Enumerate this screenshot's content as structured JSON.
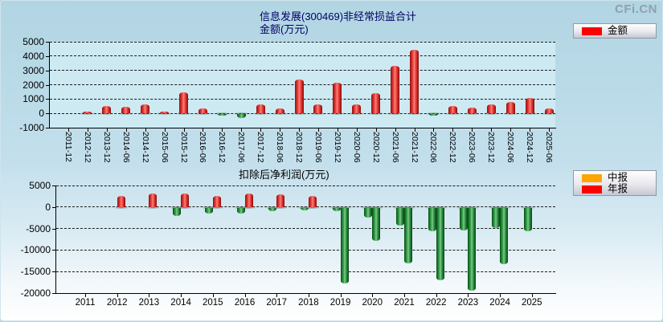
{
  "logo_text": "CFi.CN",
  "chart_data": [
    {
      "type": "bar",
      "title": "信息发展(300469)非经常损益合计",
      "subtitle": "金额(万元)",
      "ylabel": "金额(万元)",
      "ylim": [
        -1000,
        5000
      ],
      "yticks": [
        5000,
        4000,
        3000,
        2000,
        1000,
        0,
        -1000
      ],
      "grid": "dashed-horizontal",
      "legend_position": "top-right",
      "legend": [
        {
          "label": "金额",
          "color": "#ff0000"
        }
      ],
      "positive_color": "#e53935",
      "negative_color": "#2e9e44",
      "categories": [
        "2011-12",
        "2012-12",
        "2013-12",
        "2014-06",
        "2014-12",
        "2015-06",
        "2015-12",
        "2016-06",
        "2016-12",
        "2017-06",
        "2017-12",
        "2018-06",
        "2018-12",
        "2019-06",
        "2019-12",
        "2020-06",
        "2020-12",
        "2021-06",
        "2021-12",
        "2022-06",
        "2022-12",
        "2023-06",
        "2023-12",
        "2024-06",
        "2024-12",
        "2025-06"
      ],
      "series": [
        {
          "name": "金额",
          "values": [
            null,
            120,
            520,
            430,
            600,
            100,
            1480,
            330,
            -100,
            -250,
            630,
            340,
            2350,
            640,
            2160,
            650,
            1420,
            3340,
            4450,
            -80,
            490,
            380,
            600,
            820,
            1050,
            370
          ]
        }
      ]
    },
    {
      "type": "bar",
      "title": "扣除后净利润(万元)",
      "ylabel": "扣除后净利润(万元)",
      "ylim": [
        -20000,
        5000
      ],
      "yticks": [
        5000,
        0,
        -5000,
        -10000,
        -15000,
        -20000
      ],
      "grid": "dashed-horizontal",
      "legend_position": "top-right",
      "legend": [
        {
          "label": "中报",
          "color": "#ffa500"
        },
        {
          "label": "年报",
          "color": "#ff0000"
        }
      ],
      "positive_color": "#e53935",
      "negative_color": "#2e9e44",
      "categories": [
        "2011",
        "2012",
        "2013",
        "2014",
        "2015",
        "2016",
        "2017",
        "2018",
        "2019",
        "2020",
        "2021",
        "2022",
        "2023",
        "2024",
        "2025"
      ],
      "series": [
        {
          "name": "中报",
          "values": [
            null,
            null,
            null,
            -1870,
            -1310,
            -1350,
            -750,
            -580,
            -780,
            -2300,
            -4200,
            -5500,
            -5300,
            -4700,
            -5400
          ]
        },
        {
          "name": "年报",
          "values": [
            null,
            2570,
            3130,
            3130,
            2570,
            3130,
            2880,
            2570,
            -17500,
            -7700,
            -12900,
            -16800,
            -19300,
            -13100,
            null
          ]
        }
      ]
    }
  ]
}
